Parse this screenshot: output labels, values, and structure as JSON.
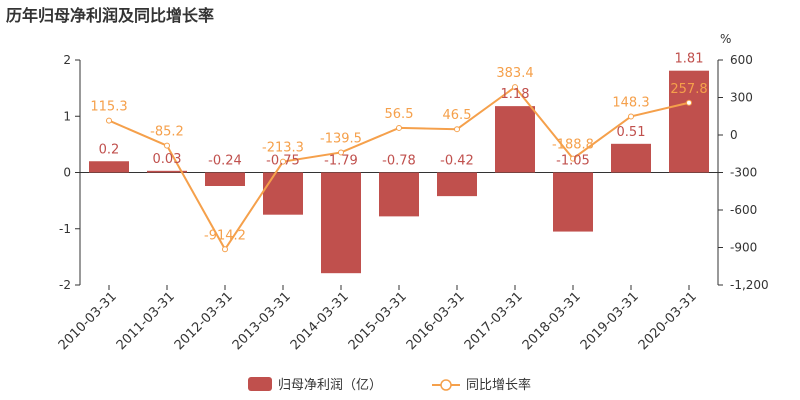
{
  "title": "历年归母净利润及同比增长率",
  "colors": {
    "bar": "#c0504d",
    "line": "#f5a04b",
    "axis": "#333333",
    "zero_line": "#333333"
  },
  "chart_data": {
    "type": "bar",
    "title": "历年归母净利润及同比增长率",
    "categories": [
      "2010-03-31",
      "2011-03-31",
      "2012-03-31",
      "2013-03-31",
      "2014-03-31",
      "2015-03-31",
      "2016-03-31",
      "2017-03-31",
      "2018-03-31",
      "2019-03-31",
      "2020-03-31"
    ],
    "series": [
      {
        "name": "归母净利润（亿）",
        "type": "bar",
        "axis": "left",
        "values": [
          0.2,
          0.03,
          -0.24,
          -0.75,
          -1.79,
          -0.78,
          -0.42,
          1.18,
          -1.05,
          0.51,
          1.81
        ],
        "labels": [
          "0.2",
          "0.03",
          "-0.24",
          "-0.75",
          "-1.79",
          "-0.78",
          "-0.42",
          "1.18",
          "-1.05",
          "0.51",
          "1.81"
        ]
      },
      {
        "name": "同比增长率",
        "type": "line",
        "axis": "right",
        "values": [
          115.3,
          -85.2,
          -914.2,
          -213.3,
          -139.5,
          56.5,
          46.5,
          383.4,
          -188.8,
          148.3,
          257.8
        ],
        "labels": [
          "115.3",
          "-85.2",
          "-914.2",
          "-213.3",
          "-139.5",
          "56.5",
          "46.5",
          "383.4",
          "-188.8",
          "148.3",
          "257.8"
        ]
      }
    ],
    "y_left": {
      "ylim": [
        -2,
        2
      ],
      "ticks": [
        "-2",
        "-1",
        "0",
        "1",
        "2"
      ]
    },
    "y_right": {
      "ylim": [
        -1200,
        600
      ],
      "unit": "%",
      "ticks": [
        "-1,200",
        "-900",
        "-600",
        "-300",
        "0",
        "300",
        "600"
      ]
    },
    "grid": false,
    "legend": "bottom"
  }
}
